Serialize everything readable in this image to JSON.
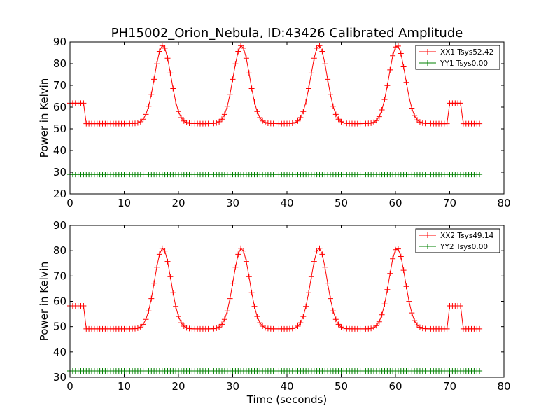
{
  "figure": {
    "title": "PH15002_Orion_Nebula, ID:43426 Calibrated Amplitude"
  },
  "chart_data": [
    {
      "type": "line",
      "title": "PH15002_Orion_Nebula, ID:43426 Calibrated Amplitude",
      "xlabel": "",
      "ylabel": "Power in Kelvin",
      "xlim": [
        0,
        80
      ],
      "ylim": [
        20,
        90
      ],
      "xticks": [
        0,
        10,
        20,
        30,
        40,
        50,
        60,
        70,
        80
      ],
      "yticks": [
        20,
        30,
        40,
        50,
        60,
        70,
        80,
        90
      ],
      "legend_position": "top-right",
      "marker": "+",
      "sample_step_seconds": 0.5,
      "x_range": [
        0,
        75.5
      ],
      "series": [
        {
          "name": "XX1 Tsys52.42",
          "color": "#ff0000",
          "baseline": 52.4,
          "step_level": 61.8,
          "step_windows": [
            [
              0,
              2.8
            ],
            [
              70,
              72.4
            ]
          ],
          "peak_value": 88.4,
          "peak_times": [
            17.1,
            31.6,
            45.9,
            60.3
          ],
          "peak_sigma": 1.5
        },
        {
          "name": "YY1 Tsys0.00",
          "color": "#008000",
          "baseline": 29.0,
          "step_level": 29.0,
          "step_windows": [],
          "peak_value": 29.0,
          "peak_times": [],
          "peak_sigma": 1.5
        }
      ]
    },
    {
      "type": "line",
      "title": "",
      "xlabel": "Time (seconds)",
      "ylabel": "Power in Kelvin",
      "xlim": [
        0,
        80
      ],
      "ylim": [
        30,
        90
      ],
      "xticks": [
        0,
        10,
        20,
        30,
        40,
        50,
        60,
        70,
        80
      ],
      "yticks": [
        30,
        40,
        50,
        60,
        70,
        80,
        90
      ],
      "legend_position": "top-right",
      "marker": "+",
      "sample_step_seconds": 0.5,
      "x_range": [
        0,
        75.5
      ],
      "series": [
        {
          "name": "XX2 Tsys49.14",
          "color": "#ff0000",
          "baseline": 49.1,
          "step_level": 58.2,
          "step_windows": [
            [
              0,
              2.8
            ],
            [
              70,
              72.4
            ]
          ],
          "peak_value": 81.0,
          "peak_times": [
            17.1,
            31.6,
            45.9,
            60.3
          ],
          "peak_sigma": 1.5
        },
        {
          "name": "YY2 Tsys0.00",
          "color": "#008000",
          "baseline": 32.5,
          "step_level": 32.5,
          "step_windows": [],
          "peak_value": 32.5,
          "peak_times": [],
          "peak_sigma": 1.5
        }
      ]
    }
  ]
}
